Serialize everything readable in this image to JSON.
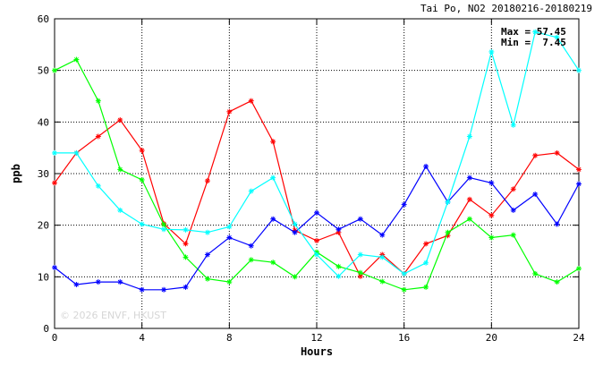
{
  "chart_data": {
    "type": "line",
    "title": "Tai Po, NO2 20180216-20180219",
    "xlabel": "Hours",
    "ylabel": "ppb",
    "xlim": [
      0,
      24
    ],
    "ylim": [
      0,
      60
    ],
    "x_ticks": [
      0,
      4,
      8,
      12,
      16,
      20,
      24
    ],
    "y_ticks": [
      0,
      10,
      20,
      30,
      40,
      50,
      60
    ],
    "grid": true,
    "max_label": "Max = 57.45",
    "min_label": "Min =  7.45",
    "watermark": "© 2026  ENVF, HKUST",
    "x": [
      0,
      1,
      2,
      3,
      4,
      5,
      6,
      7,
      8,
      9,
      10,
      11,
      12,
      13,
      14,
      15,
      16,
      17,
      18,
      19,
      20,
      21,
      22,
      23,
      24
    ],
    "series": [
      {
        "color": "#ff0000",
        "values": [
          28.2,
          34.0,
          37.2,
          40.4,
          34.5,
          20.3,
          16.4,
          28.6,
          42.0,
          44.1,
          36.2,
          19.0,
          17.0,
          18.6,
          10.1,
          14.3,
          10.6,
          16.4,
          18.0,
          25.0,
          21.9,
          27.0,
          33.5,
          34.0,
          30.8
        ]
      },
      {
        "color": "#00ff00",
        "values": [
          50.0,
          52.1,
          44.1,
          30.8,
          28.8,
          20.1,
          13.8,
          9.6,
          9.0,
          13.3,
          12.8,
          10.0,
          14.8,
          12.0,
          10.8,
          9.1,
          7.5,
          8.0,
          18.6,
          21.2,
          17.6,
          18.1,
          10.6,
          9.0,
          11.6
        ]
      },
      {
        "color": "#0000ff",
        "values": [
          11.8,
          8.5,
          9.0,
          9.0,
          7.5,
          7.5,
          8.0,
          14.3,
          17.6,
          16.0,
          21.2,
          18.6,
          22.4,
          19.2,
          21.2,
          18.1,
          24.0,
          31.4,
          24.5,
          29.2,
          28.2,
          22.9,
          26.0,
          20.2,
          28.0
        ]
      },
      {
        "color": "#00ffff",
        "values": [
          34.0,
          34.0,
          27.6,
          22.9,
          20.2,
          19.2,
          19.1,
          18.6,
          19.7,
          26.6,
          29.2,
          20.2,
          14.3,
          10.1,
          14.3,
          13.8,
          10.6,
          12.7,
          24.5,
          37.2,
          53.6,
          39.4,
          57.45,
          56.4,
          50.0
        ]
      }
    ]
  }
}
